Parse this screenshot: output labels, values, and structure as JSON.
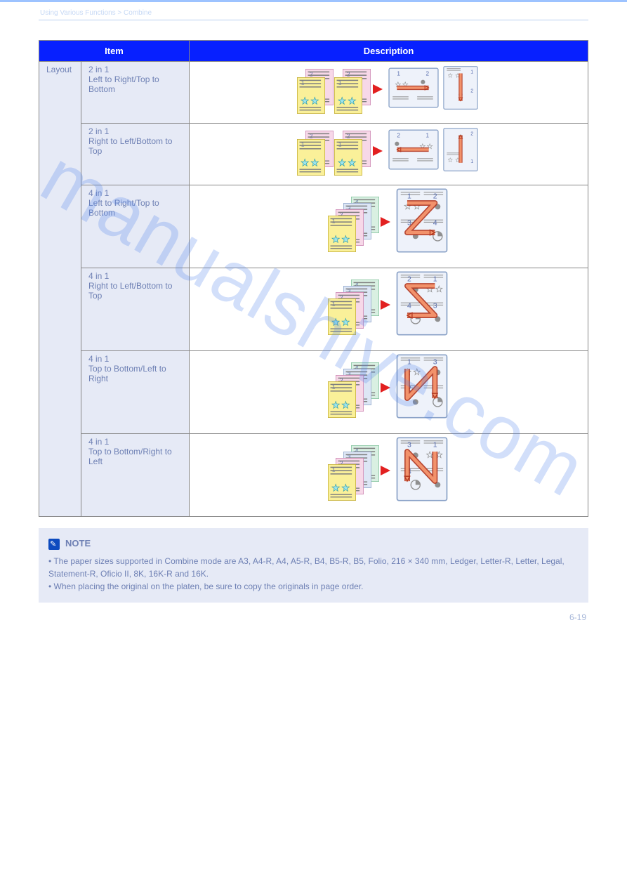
{
  "breadcrumb": "Using Various Functions > Combine",
  "watermark": "manualshive.com",
  "page_number": "6-19",
  "table": {
    "header_item": "Item",
    "header_desc": "Description",
    "category": "Layout",
    "rows": [
      {
        "label": "2 in 1\nLeft to Right/Top to Bottom",
        "diagram": "d2_ltr",
        "tall": false
      },
      {
        "label": "2 in 1\nRight to Left/Bottom to Top",
        "diagram": "d2_rtl",
        "tall": false
      },
      {
        "label": "4 in 1\nLeft to Right/Top to Bottom",
        "diagram": "d4_z_ltr",
        "tall": true
      },
      {
        "label": "4 in 1\nRight to Left/Bottom to Top",
        "diagram": "d4_z_rtl",
        "tall": true
      },
      {
        "label": "4 in 1\nTop to Bottom/Left to Right",
        "diagram": "d4_n_ltr",
        "tall": true
      },
      {
        "label": "4 in 1\nTop to Bottom/Right to Left",
        "diagram": "d4_n_rtl",
        "tall": true
      }
    ]
  },
  "note": {
    "title": "NOTE",
    "bullets": [
      "The paper sizes supported in Combine mode are A3, A4-R, A4, A5-R, B4, B5-R, B5, Folio, 216 × 340 mm, Ledger, Letter-R, Letter, Legal, Statement-R, Oficio II, 8K, 16K-R and 16K.",
      "When placing the original on the platen, be sure to copy the originals in page order."
    ]
  },
  "colors": {
    "page1": "#faf099",
    "page1_border": "#bfa82c",
    "page2": "#f7d8e8",
    "page2_border": "#c97fae",
    "page3": "#dde6f5",
    "page3_border": "#8aa2c7",
    "page4": "#d9f0e2",
    "page4_border": "#7cbf99",
    "star": "#51c9d4",
    "circle_pink": "#db5fa0",
    "circle_grey": "#a7a7a7",
    "line": "#7f7f7f",
    "red_tri": "#e22020",
    "arrow_fill": "#f2926b",
    "arrow_stroke": "#b0341d",
    "result_bg": "#eef2fa",
    "result_border": "#8aa2c7",
    "num_color": "#5a6fae"
  }
}
